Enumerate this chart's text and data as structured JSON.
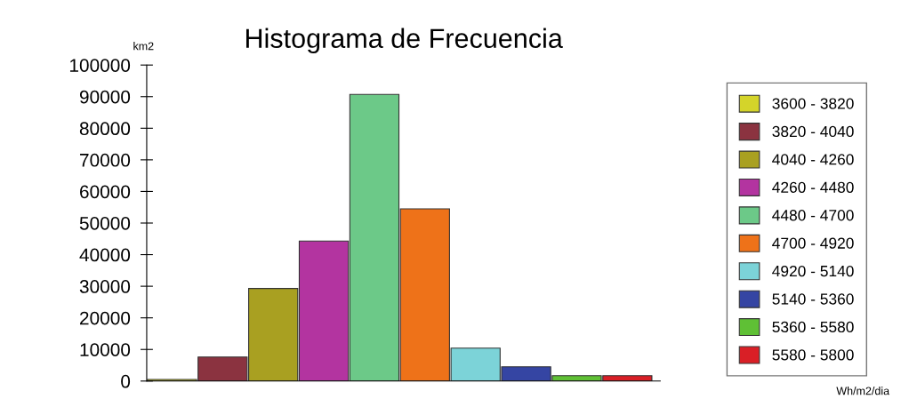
{
  "chart_data": {
    "type": "bar",
    "title": "Histograma de Frecuencia",
    "categories": [
      null,
      null,
      null,
      null,
      null,
      null,
      null,
      null,
      null,
      null
    ],
    "series": [
      {
        "name": "3600 - 3820",
        "color": "#d4d42a",
        "values": [
          500,
          null,
          null,
          null,
          null,
          null,
          null,
          null,
          null,
          null
        ]
      },
      {
        "name": "3820 - 4040",
        "color": "#8b3340",
        "values": [
          null,
          7600,
          null,
          null,
          null,
          null,
          null,
          null,
          null,
          null
        ]
      },
      {
        "name": "4040 - 4260",
        "color": "#a9a021",
        "values": [
          null,
          null,
          29300,
          null,
          null,
          null,
          null,
          null,
          null,
          null
        ]
      },
      {
        "name": "4260 - 4480",
        "color": "#b334a0",
        "values": [
          null,
          null,
          null,
          44300,
          null,
          null,
          null,
          null,
          null,
          null
        ]
      },
      {
        "name": "4480 - 4700",
        "color": "#6cc988",
        "values": [
          null,
          null,
          null,
          null,
          90700,
          null,
          null,
          null,
          null,
          null
        ]
      },
      {
        "name": "4700 - 4920",
        "color": "#ee7219",
        "values": [
          null,
          null,
          null,
          null,
          null,
          54500,
          null,
          null,
          null,
          null
        ]
      },
      {
        "name": "4920 - 5140",
        "color": "#7cd3d8",
        "values": [
          null,
          null,
          null,
          null,
          null,
          null,
          10400,
          null,
          null,
          null
        ]
      },
      {
        "name": "5140 - 5360",
        "color": "#3545a3",
        "values": [
          null,
          null,
          null,
          null,
          null,
          null,
          null,
          4500,
          null,
          null
        ]
      },
      {
        "name": "5360 - 5580",
        "color": "#5fc035",
        "values": [
          null,
          null,
          null,
          null,
          null,
          null,
          null,
          null,
          1700,
          null
        ]
      },
      {
        "name": "5580 - 5800",
        "color": "#d91f26",
        "values": [
          null,
          null,
          null,
          null,
          null,
          null,
          null,
          null,
          null,
          1700
        ]
      }
    ],
    "ylim": [
      0,
      100000
    ],
    "yticks": [
      0,
      10000,
      20000,
      30000,
      40000,
      50000,
      60000,
      70000,
      80000,
      90000,
      100000
    ],
    "grid": false,
    "legend": "right",
    "annotations": [
      "km2",
      "Wh/m2/dia"
    ]
  }
}
